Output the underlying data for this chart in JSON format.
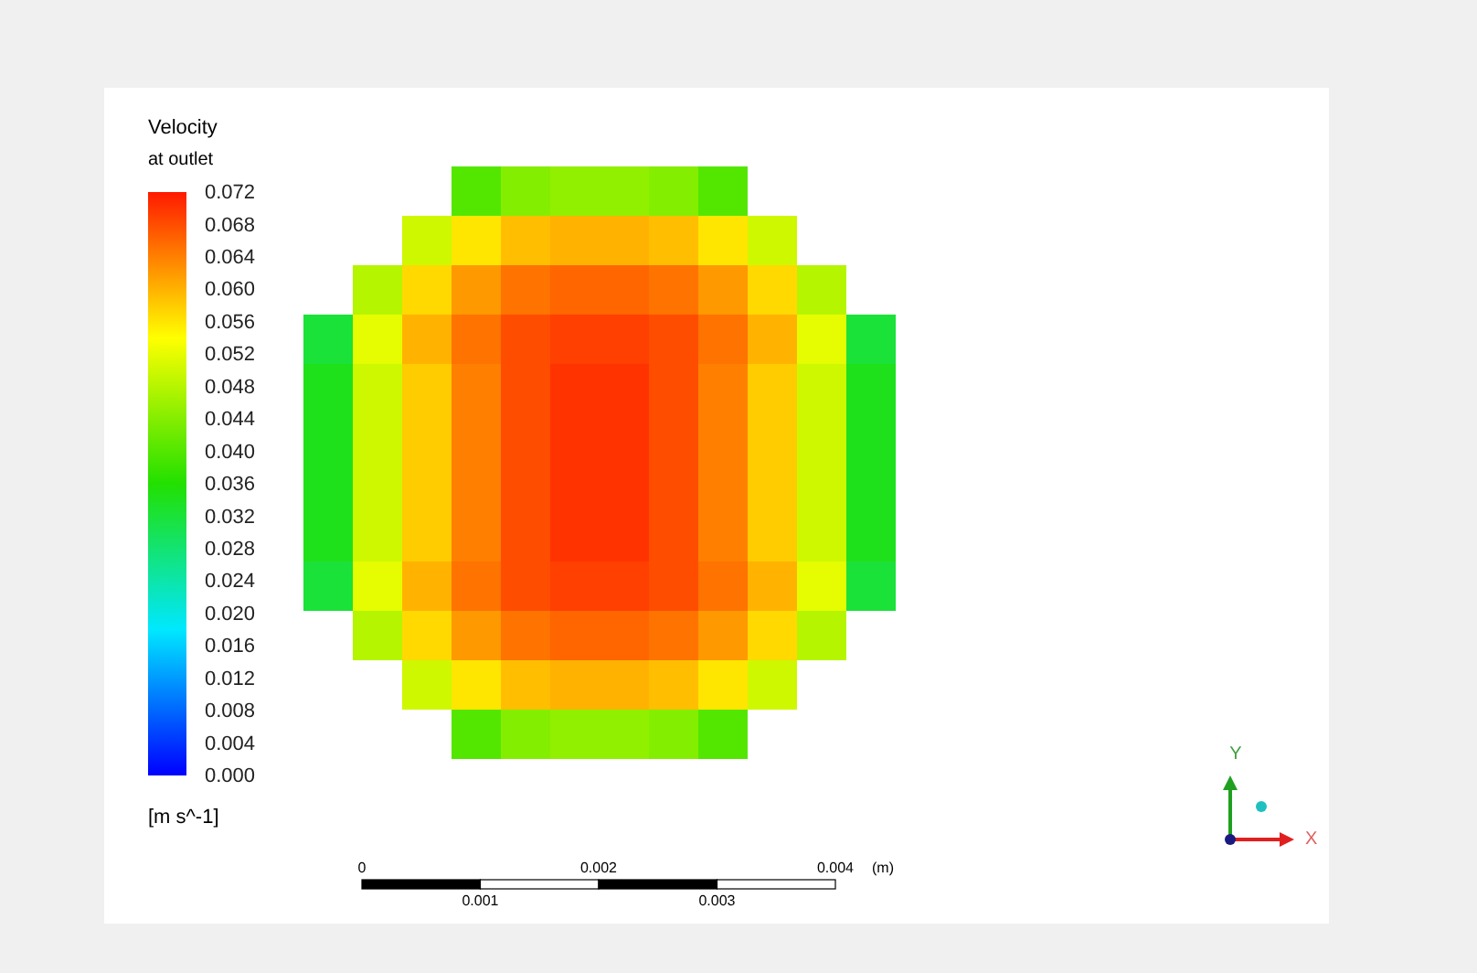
{
  "chart_data": {
    "type": "heatmap",
    "title": "Velocity",
    "subtitle": "at outlet",
    "clabel": "[m s^-1]",
    "categories": [
      null,
      null,
      null,
      null,
      null,
      null,
      null,
      null,
      null,
      null,
      null,
      null
    ],
    "y_categories": [
      null,
      null,
      null,
      null,
      null,
      null,
      null,
      null,
      null,
      null,
      null,
      null
    ],
    "cells": [
      [
        null,
        null,
        null,
        0.04,
        0.044,
        0.045,
        0.045,
        0.044,
        0.04,
        null,
        null,
        null
      ],
      [
        null,
        null,
        0.05,
        0.056,
        0.059,
        0.06,
        0.06,
        0.059,
        0.056,
        0.05,
        null,
        null
      ],
      [
        null,
        0.048,
        0.057,
        0.062,
        0.065,
        0.066,
        0.066,
        0.065,
        0.062,
        0.057,
        0.048,
        null
      ],
      [
        0.032,
        0.052,
        0.06,
        0.065,
        0.068,
        0.069,
        0.069,
        0.068,
        0.065,
        0.06,
        0.052,
        0.032
      ],
      [
        0.034,
        0.05,
        0.058,
        0.064,
        0.068,
        0.07,
        0.07,
        0.068,
        0.064,
        0.058,
        0.05,
        0.034
      ],
      [
        0.034,
        0.05,
        0.058,
        0.064,
        0.068,
        0.07,
        0.07,
        0.068,
        0.064,
        0.058,
        0.05,
        0.034
      ],
      [
        0.034,
        0.05,
        0.058,
        0.064,
        0.068,
        0.07,
        0.07,
        0.068,
        0.064,
        0.058,
        0.05,
        0.034
      ],
      [
        0.034,
        0.05,
        0.058,
        0.064,
        0.068,
        0.07,
        0.07,
        0.068,
        0.064,
        0.058,
        0.05,
        0.034
      ],
      [
        0.032,
        0.052,
        0.06,
        0.065,
        0.068,
        0.069,
        0.069,
        0.068,
        0.065,
        0.06,
        0.052,
        0.032
      ],
      [
        null,
        0.048,
        0.057,
        0.062,
        0.065,
        0.066,
        0.066,
        0.065,
        0.062,
        0.057,
        0.048,
        null
      ],
      [
        null,
        null,
        0.05,
        0.056,
        0.059,
        0.06,
        0.06,
        0.059,
        0.056,
        0.05,
        null,
        null
      ],
      [
        null,
        null,
        null,
        0.04,
        0.044,
        0.045,
        0.045,
        0.044,
        0.04,
        null,
        null,
        null
      ]
    ],
    "clim": [
      0,
      0.072
    ],
    "cticks": [
      {
        "value": 0,
        "label": "0.000"
      },
      {
        "value": 0.004,
        "label": "0.004"
      },
      {
        "value": 0.008,
        "label": "0.008"
      },
      {
        "value": 0.012,
        "label": "0.012"
      },
      {
        "value": 0.016,
        "label": "0.016"
      },
      {
        "value": 0.02,
        "label": "0.020"
      },
      {
        "value": 0.024,
        "label": "0.024"
      },
      {
        "value": 0.028,
        "label": "0.028"
      },
      {
        "value": 0.032,
        "label": "0.032"
      },
      {
        "value": 0.036,
        "label": "0.036"
      },
      {
        "value": 0.04,
        "label": "0.040"
      },
      {
        "value": 0.044,
        "label": "0.044"
      },
      {
        "value": 0.048,
        "label": "0.048"
      },
      {
        "value": 0.052,
        "label": "0.052"
      },
      {
        "value": 0.056,
        "label": "0.056"
      },
      {
        "value": 0.06,
        "label": "0.060"
      },
      {
        "value": 0.064,
        "label": "0.064"
      },
      {
        "value": 0.068,
        "label": "0.068"
      },
      {
        "value": 0.072,
        "label": "0.072"
      }
    ],
    "annotations": [
      "0",
      "0.001",
      "0.002",
      "0.003",
      "0.004",
      "(m)",
      "X",
      "Y"
    ]
  }
}
